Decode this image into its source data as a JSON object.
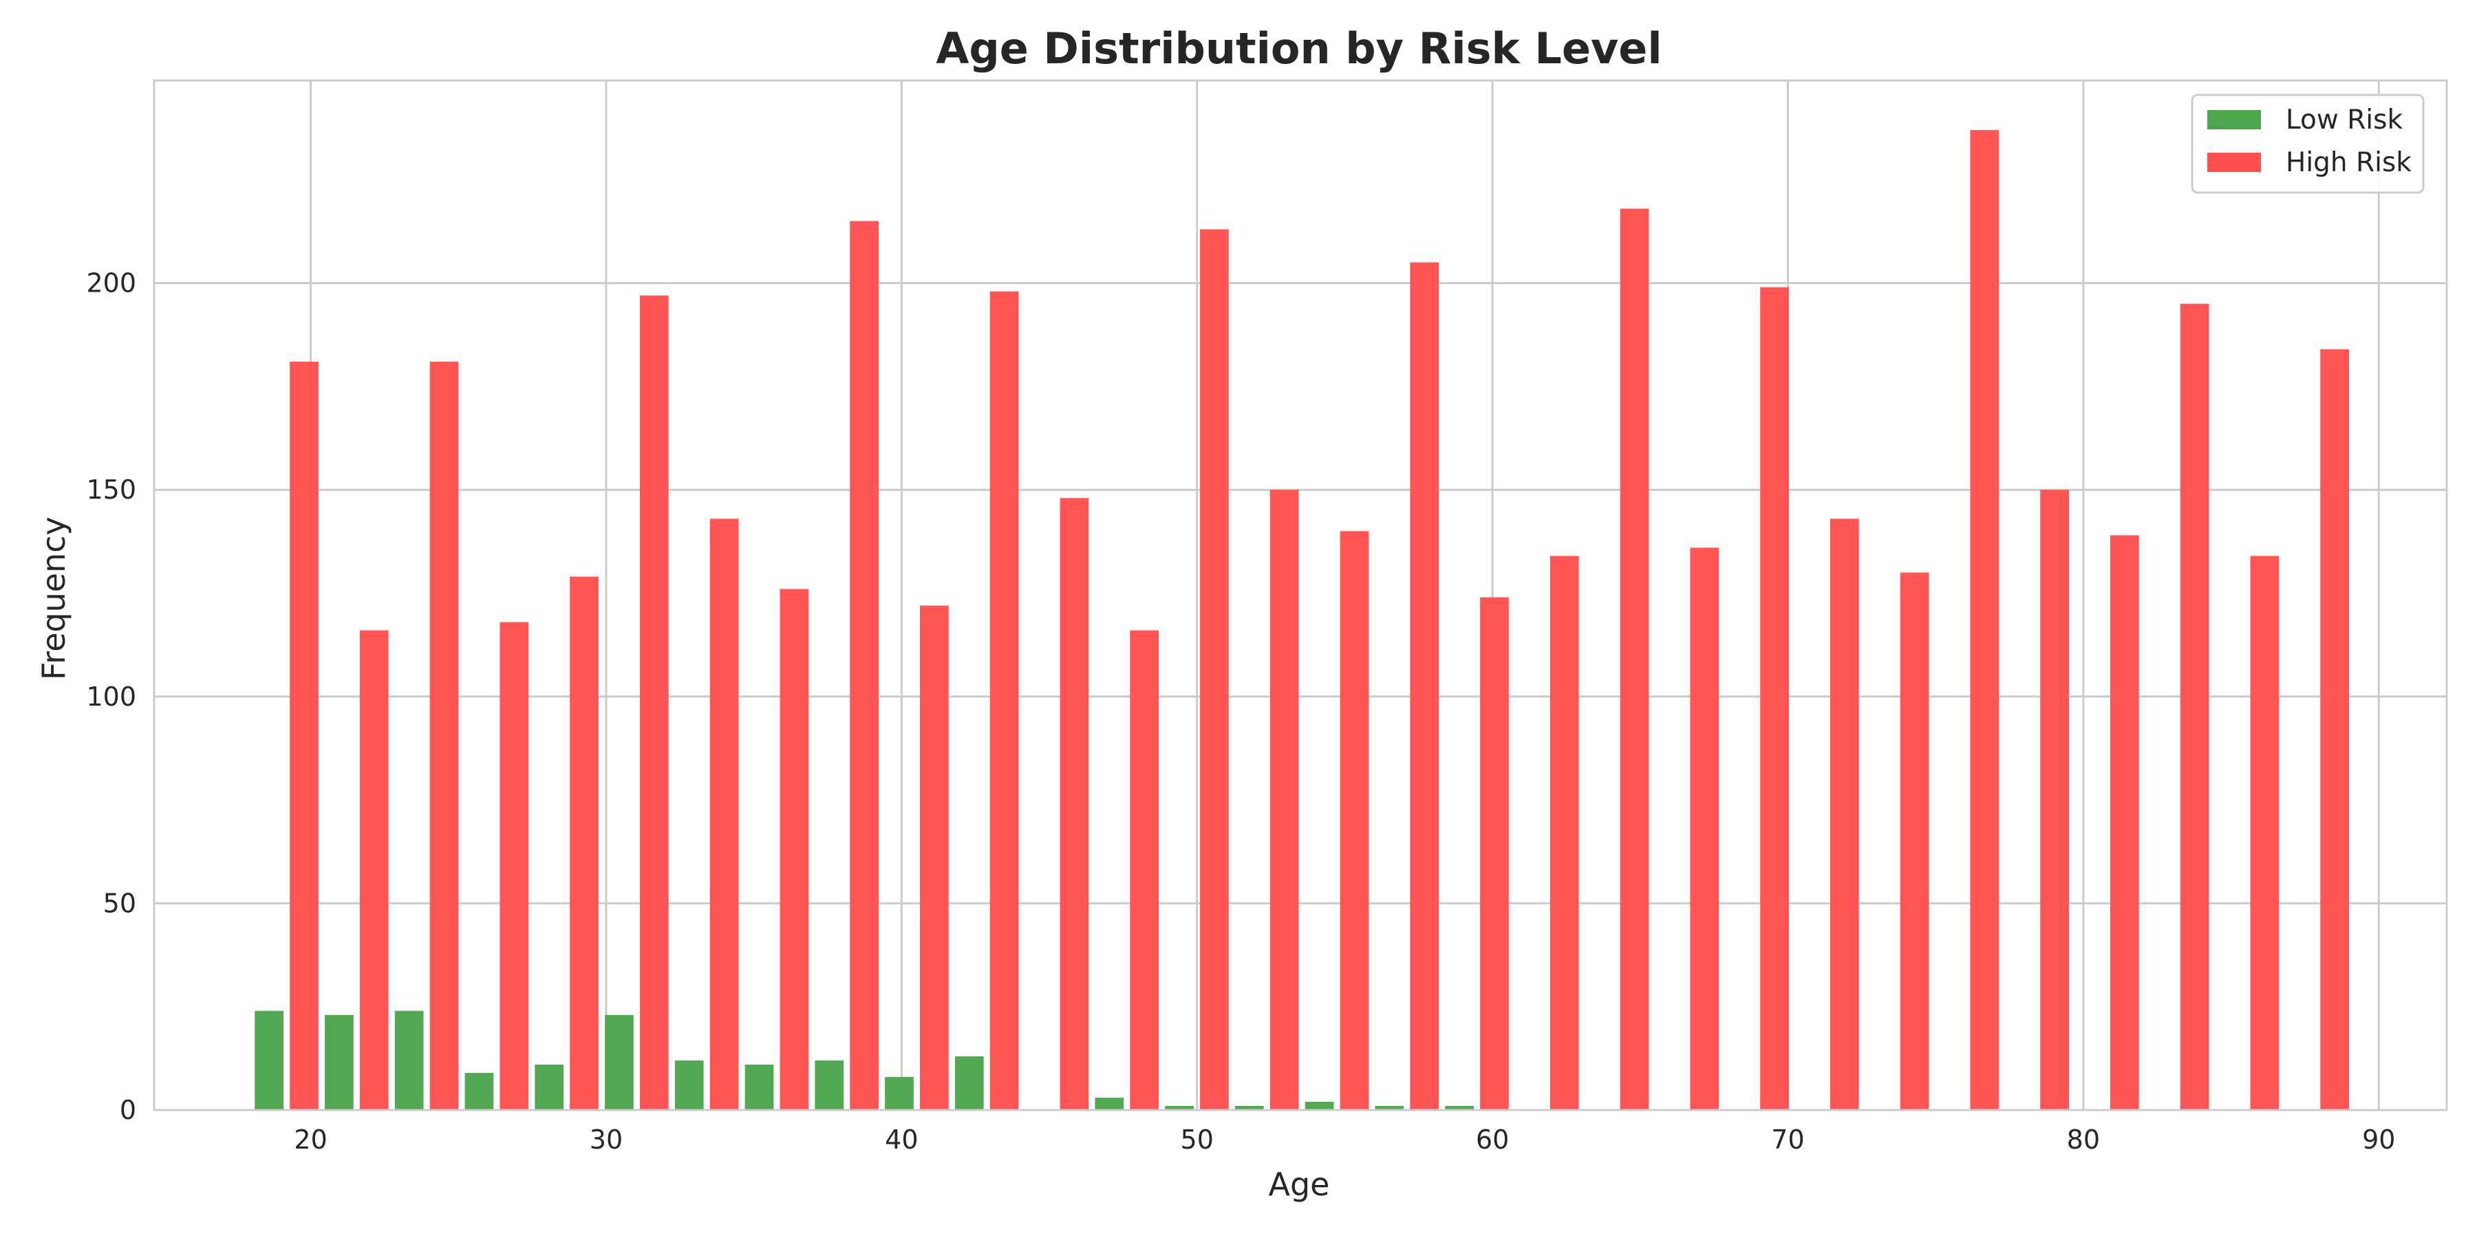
{
  "chart_data": {
    "type": "bar",
    "title": "Age Distribution by Risk Level",
    "xlabel": "Age",
    "ylabel": "Frequency",
    "xlim": [
      14.7,
      92.3
    ],
    "ylim": [
      0,
      249
    ],
    "x_ticks": [
      20,
      30,
      40,
      50,
      60,
      70,
      80,
      90
    ],
    "y_ticks": [
      0,
      50,
      100,
      150,
      200
    ],
    "grid": true,
    "legend_position": "top-right",
    "bin_width": 2.37,
    "bin_starts": [
      18.0,
      20.37,
      22.74,
      25.11,
      27.48,
      29.85,
      32.22,
      34.59,
      36.96,
      39.33,
      41.7,
      44.07,
      46.44,
      48.81,
      51.18,
      53.55,
      55.92,
      58.29,
      60.66,
      63.03,
      65.4,
      67.77,
      70.14,
      72.51,
      74.88,
      77.25,
      79.62,
      81.99,
      84.36,
      86.73
    ],
    "series": [
      {
        "name": "Low Risk",
        "color": "#4da64d",
        "values": [
          24,
          23,
          24,
          9,
          11,
          23,
          12,
          11,
          12,
          8,
          13,
          0,
          3,
          1,
          1,
          2,
          1,
          1,
          0,
          0,
          0,
          0,
          0,
          0,
          0,
          0,
          0,
          0,
          0,
          0
        ]
      },
      {
        "name": "High Risk",
        "color": "#ff4f4f",
        "values": [
          181,
          116,
          181,
          118,
          129,
          197,
          143,
          126,
          215,
          122,
          198,
          148,
          116,
          213,
          150,
          140,
          205,
          124,
          134,
          218,
          136,
          199,
          143,
          130,
          237,
          150,
          139,
          195,
          134,
          184
        ]
      }
    ]
  }
}
